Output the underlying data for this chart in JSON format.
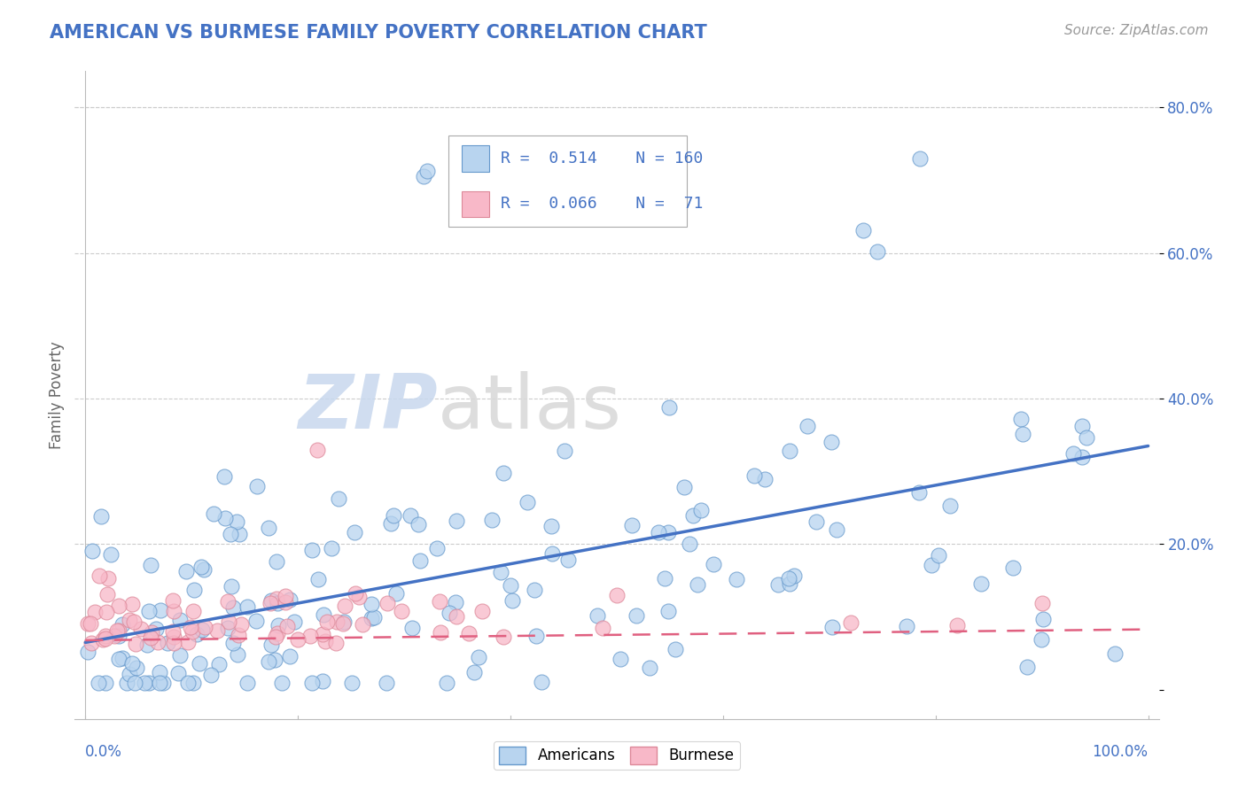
{
  "title": "AMERICAN VS BURMESE FAMILY POVERTY CORRELATION CHART",
  "source_text": "Source: ZipAtlas.com",
  "ylabel": "Family Poverty",
  "american_R": 0.514,
  "american_N": 160,
  "burmese_R": 0.066,
  "burmese_N": 71,
  "american_color": "#b8d4ef",
  "american_edge_color": "#6699cc",
  "american_line_color": "#4472c4",
  "burmese_color": "#f8b8c8",
  "burmese_edge_color": "#dd8899",
  "burmese_line_color": "#e06080",
  "background_color": "#ffffff",
  "grid_color": "#cccccc",
  "title_color": "#4472c4",
  "source_color": "#999999",
  "ylabel_color": "#666666",
  "watermark_zip_color": "#d0dff0",
  "watermark_atlas_color": "#d8d8d8",
  "legend_label_american": "Americans",
  "legend_label_burmese": "Burmese",
  "ytick_color": "#4472c4",
  "xtick_color": "#4472c4",
  "seed": 12345,
  "xlim": [
    -0.01,
    1.01
  ],
  "ylim": [
    -0.04,
    0.85
  ]
}
